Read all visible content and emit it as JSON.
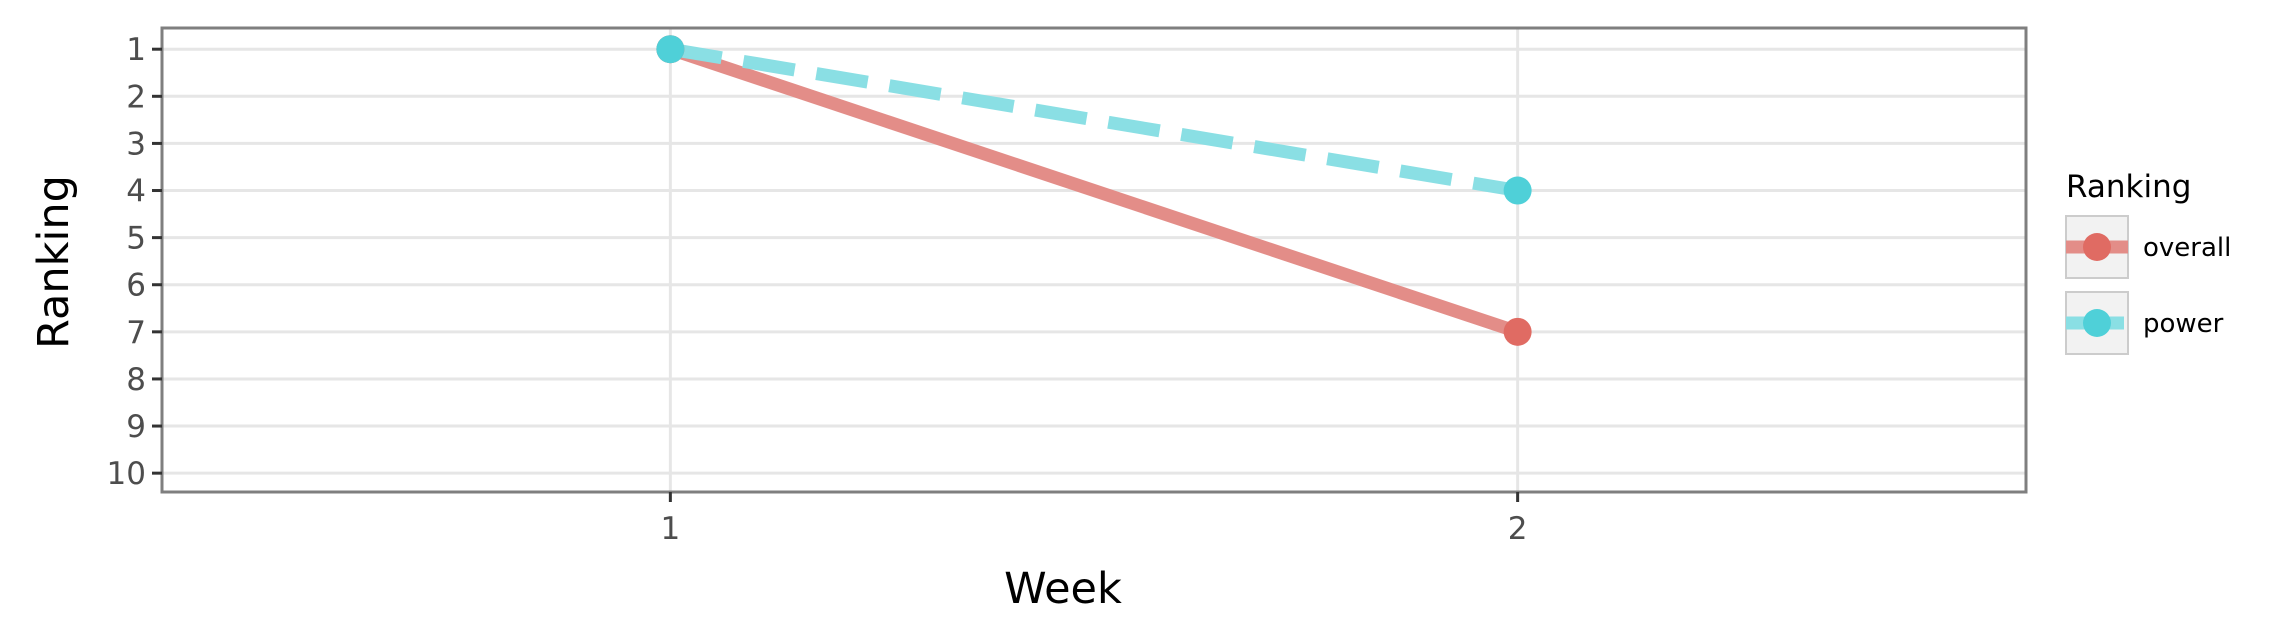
{
  "chart_data": {
    "type": "line",
    "title": "",
    "xlabel": "Week",
    "ylabel": "Ranking",
    "x": [
      1,
      2
    ],
    "x_ticks": [
      "1",
      "2"
    ],
    "y_ticks": [
      "1",
      "2",
      "3",
      "4",
      "5",
      "6",
      "7",
      "8",
      "9",
      "10"
    ],
    "xlim": [
      0.4,
      2.6
    ],
    "ylim": [
      10.4,
      0.55
    ],
    "y_reversed": true,
    "grid": true,
    "legend": {
      "title": "Ranking",
      "placement": "right"
    },
    "series": [
      {
        "name": "overall",
        "values": [
          1,
          7
        ],
        "color": "#e06b63",
        "line_color": "#e38d88",
        "line_style": "solid"
      },
      {
        "name": "power",
        "values": [
          1,
          4
        ],
        "color": "#4fd0d8",
        "line_color": "#8adfe4",
        "line_style": "dashed"
      }
    ],
    "colors": {
      "panel_border": "#7f7f7f",
      "grid": "#e6e6e6",
      "legend_key_bg": "#f2f2f2",
      "legend_key_border": "#cccccc"
    }
  }
}
